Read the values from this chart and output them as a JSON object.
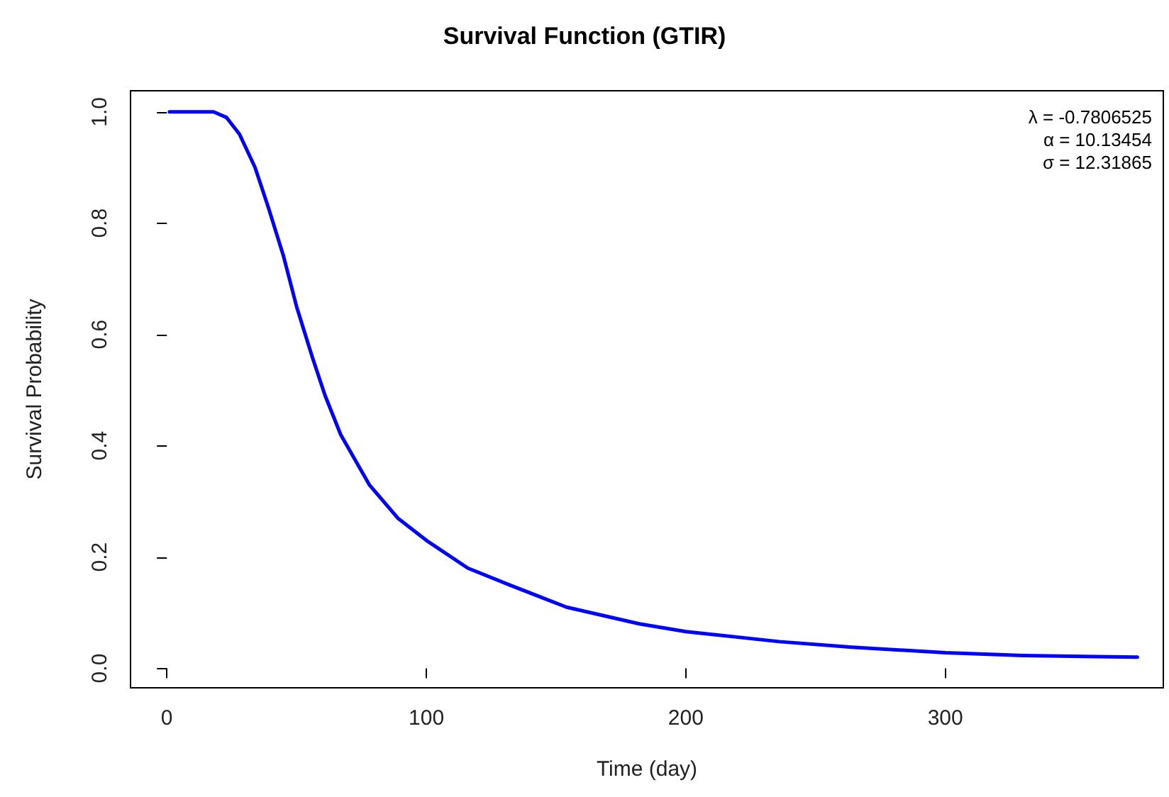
{
  "chart_data": {
    "type": "line",
    "title": "Survival Function (GTIR)",
    "xlabel": "Time (day)",
    "ylabel": "Survival Probability",
    "annotations": [
      "λ = -0.7806525",
      "α = 10.13454",
      "σ = 12.31865"
    ],
    "xlim": [
      -14,
      384
    ],
    "xticks": [
      0,
      100,
      200,
      300
    ],
    "ylim": [
      -0.035,
      1.038
    ],
    "yticks": [
      {
        "value": 0,
        "label": "0.0"
      },
      0.2,
      0.4,
      0.6,
      0.8,
      {
        "value": 1,
        "label": "1.0"
      }
    ],
    "grid": false,
    "marker": "none",
    "line_style": "solid",
    "series": [
      {
        "color": "#0000ff",
        "x": [
          1,
          10,
          18,
          23,
          28,
          34,
          39,
          45,
          50,
          56,
          61,
          67,
          78,
          89,
          100,
          116,
          132,
          154,
          182,
          200,
          236,
          264,
          300,
          330,
          374
        ],
        "values": [
          1.0,
          1.0,
          1.0,
          0.99,
          0.96,
          0.9,
          0.83,
          0.74,
          0.65,
          0.56,
          0.49,
          0.42,
          0.33,
          0.27,
          0.23,
          0.18,
          0.15,
          0.11,
          0.08,
          0.066,
          0.048,
          0.038,
          0.028,
          0.023,
          0.02
        ]
      }
    ]
  }
}
